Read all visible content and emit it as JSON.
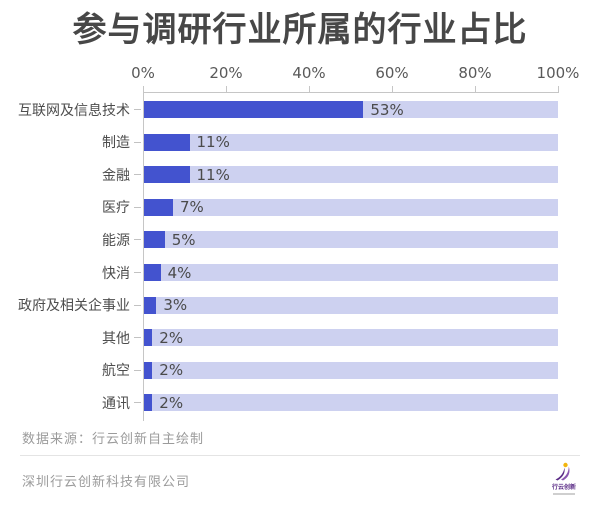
{
  "page": {
    "title": "参与调研行业所属的行业占比"
  },
  "chart_data": {
    "type": "bar",
    "orientation": "horizontal",
    "title": "参与调研行业所属的行业占比",
    "categories": [
      "互联网及信息技术",
      "制造",
      "金融",
      "医疗",
      "能源",
      "快消",
      "政府及相关企事业",
      "其他",
      "航空",
      "通讯"
    ],
    "values": [
      53,
      11,
      11,
      7,
      5,
      4,
      3,
      2,
      2,
      2
    ],
    "value_labels": [
      "53%",
      "11%",
      "11%",
      "7%",
      "5%",
      "4%",
      "3%",
      "2%",
      "2%",
      "2%"
    ],
    "x_ticks": [
      "0%",
      "20%",
      "40%",
      "60%",
      "80%",
      "100%"
    ],
    "xlim": [
      0,
      100
    ],
    "xlabel": "",
    "ylabel": "",
    "grid": false,
    "legend": false,
    "axis_position": "top",
    "bar_color": "#4353cf",
    "track_color": "#cdd1f0"
  },
  "footer": {
    "source": "数据来源：行云创新自主绘制",
    "company": "深圳行云创新科技有限公司",
    "logo_text": "行云创新"
  },
  "colors": {
    "title_text": "#474747",
    "axis_text": "#595959",
    "category_text": "#4d4d4d",
    "value_text": "#4a4a4a",
    "footer_text": "#9b9b9b",
    "accent_bar": "#4353cf",
    "bar_track": "#cdd1f0",
    "logo_purple": "#5c2d87",
    "logo_yellow": "#f2b50e"
  }
}
